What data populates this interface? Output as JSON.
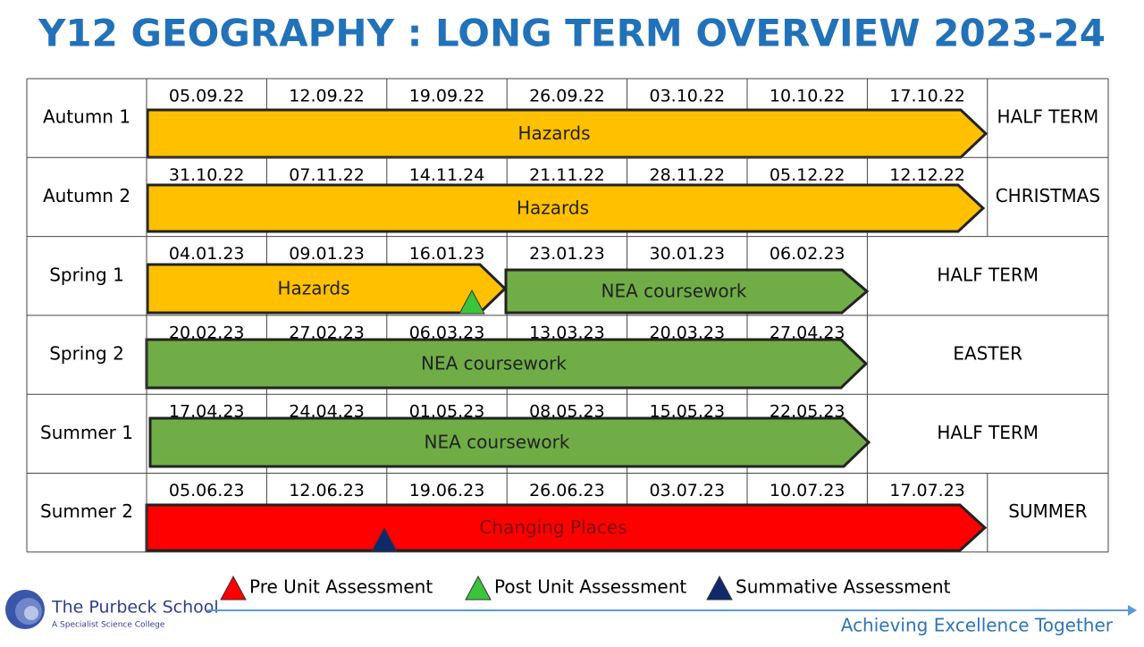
{
  "title": "Y12 GEOGRAPHY : LONG TERM OVERVIEW 2023-24",
  "rows": [
    {
      "term": "Autumn 1",
      "dates": [
        "05.09.22",
        "12.09.22",
        "19.09.22",
        "26.09.22",
        "03.10.22",
        "10.10.22",
        "17.10.22"
      ],
      "bars": [
        "Hazards"
      ],
      "holiday": "HALF TERM"
    },
    {
      "term": "Autumn 2",
      "dates": [
        "31.10.22",
        "07.11.22",
        "14.11.24",
        "21.11.22",
        "28.11.22",
        "05.12.22",
        "12.12.22"
      ],
      "bars": [
        "Hazards"
      ],
      "holiday": "CHRISTMAS"
    },
    {
      "term": "Spring 1",
      "dates": [
        "04.01.23",
        "09.01.23",
        "16.01.23",
        "23.01.23",
        "30.01.23",
        "06.02.23"
      ],
      "bars": [
        "Hazards",
        "NEA coursework"
      ],
      "holiday": "HALF TERM"
    },
    {
      "term": "Spring 2",
      "dates": [
        "20.02.23",
        "27.02.23",
        "06.03.23",
        "13.03.23",
        "20.03.23",
        "27.04.23"
      ],
      "bars": [
        "NEA coursework"
      ],
      "holiday": "EASTER"
    },
    {
      "term": "Summer 1",
      "dates": [
        "17.04.23",
        "24.04.23",
        "01.05.23",
        "08.05.23",
        "15.05.23",
        "22.05.23"
      ],
      "bars": [
        "NEA coursework"
      ],
      "holiday": "HALF TERM"
    },
    {
      "term": "Summer 2",
      "dates": [
        "05.06.23",
        "12.06.23",
        "19.06.23",
        "26.06.23",
        "03.07.23",
        "10.07.23",
        "17.07.23"
      ],
      "bars": [
        "Changing Places"
      ],
      "holiday": "SUMMER"
    }
  ],
  "legend": [
    "Pre Unit Assessment",
    "Post Unit Assessment",
    "Summative Assessment"
  ],
  "footer": {
    "school": "The Purbeck School",
    "subtitle": "A Specialist Science College",
    "tagline": "Achieving Excellence Together"
  }
}
